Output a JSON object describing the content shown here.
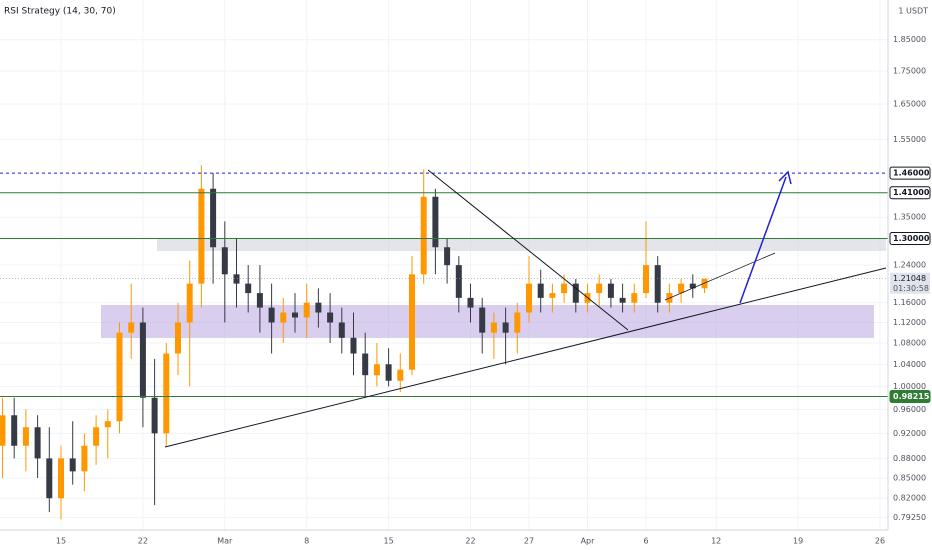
{
  "chart_data": {
    "type": "candlestick",
    "title": "RSI Strategy (14, 30, 70)",
    "price_unit": "1 USDT",
    "log_scale": true,
    "grid": true,
    "up_color": "#ff9800",
    "down_color": "#363a45",
    "categories": [
      null,
      null,
      null,
      null,
      null,
      "15",
      null,
      null,
      null,
      null,
      null,
      null,
      "22",
      null,
      null,
      null,
      null,
      null,
      null,
      "Mar",
      null,
      null,
      null,
      null,
      null,
      null,
      "8",
      null,
      null,
      null,
      null,
      null,
      null,
      "15",
      null,
      null,
      null,
      null,
      null,
      null,
      "22",
      null,
      null,
      null,
      null,
      "27",
      null,
      null,
      null,
      null,
      "Apr",
      null,
      null,
      null,
      null,
      "6",
      null,
      null,
      null,
      null,
      null,
      "12",
      null,
      null,
      null,
      null,
      null,
      null,
      "19",
      null,
      null,
      null,
      null,
      null,
      null,
      "26"
    ],
    "open": [
      0.9,
      0.95,
      0.9,
      0.93,
      0.88,
      0.82,
      0.88,
      0.86,
      0.9,
      0.93,
      0.94,
      1.1,
      1.12,
      0.98,
      0.92,
      1.06,
      1.12,
      1.2,
      1.42,
      1.28,
      1.22,
      1.2,
      1.18,
      1.15,
      1.12,
      1.14,
      1.13,
      1.16,
      1.14,
      1.12,
      1.09,
      1.06,
      1.02,
      1.04,
      1.01,
      1.03,
      1.22,
      1.4,
      1.28,
      1.24,
      1.17,
      1.15,
      1.1,
      1.12,
      1.1,
      1.14,
      1.2,
      1.17,
      1.18,
      1.2,
      1.16,
      1.18,
      1.2,
      1.17,
      1.16,
      1.18,
      1.24,
      1.16,
      1.18,
      1.2,
      1.19,
      null,
      null,
      null,
      null,
      null,
      null,
      null,
      null,
      null,
      null,
      null,
      null,
      null,
      null,
      null
    ],
    "high": [
      0.98,
      0.98,
      0.96,
      0.95,
      0.93,
      0.9,
      0.94,
      0.92,
      0.95,
      0.96,
      1.12,
      1.2,
      1.15,
      1.05,
      1.08,
      1.16,
      1.25,
      1.48,
      1.46,
      1.34,
      1.3,
      1.24,
      1.24,
      1.2,
      1.17,
      1.18,
      1.2,
      1.19,
      1.18,
      1.15,
      1.14,
      1.1,
      1.08,
      1.07,
      1.06,
      1.26,
      1.47,
      1.42,
      1.3,
      1.26,
      1.2,
      1.17,
      1.14,
      1.15,
      1.16,
      1.26,
      1.23,
      1.2,
      1.22,
      1.21,
      1.2,
      1.22,
      1.21,
      1.2,
      1.2,
      1.34,
      1.26,
      1.2,
      1.21,
      1.22,
      1.21,
      null,
      null,
      null,
      null,
      null,
      null,
      null,
      null,
      null,
      null,
      null,
      null,
      null,
      null,
      null
    ],
    "low": [
      0.85,
      0.88,
      0.86,
      0.85,
      0.8,
      0.79,
      0.84,
      0.83,
      0.87,
      0.88,
      0.92,
      1.05,
      0.93,
      0.81,
      0.9,
      1.02,
      1.0,
      1.15,
      1.2,
      1.12,
      1.15,
      1.14,
      1.1,
      1.06,
      1.08,
      1.1,
      1.09,
      1.11,
      1.08,
      1.06,
      1.02,
      0.98,
      1.0,
      1.0,
      0.99,
      1.02,
      1.2,
      1.22,
      1.2,
      1.14,
      1.12,
      1.06,
      1.05,
      1.04,
      1.06,
      1.12,
      1.14,
      1.14,
      1.16,
      1.14,
      1.14,
      1.15,
      1.15,
      1.14,
      1.14,
      1.17,
      1.14,
      1.14,
      1.16,
      1.17,
      1.18,
      null,
      null,
      null,
      null,
      null,
      null,
      null,
      null,
      null,
      null,
      null,
      null,
      null,
      null,
      null
    ],
    "close": [
      0.95,
      0.9,
      0.93,
      0.88,
      0.82,
      0.88,
      0.86,
      0.9,
      0.93,
      0.94,
      1.1,
      1.12,
      0.98,
      0.92,
      1.06,
      1.12,
      1.2,
      1.42,
      1.28,
      1.22,
      1.2,
      1.18,
      1.15,
      1.12,
      1.14,
      1.13,
      1.16,
      1.14,
      1.12,
      1.09,
      1.06,
      1.02,
      1.04,
      1.01,
      1.03,
      1.22,
      1.4,
      1.28,
      1.24,
      1.17,
      1.15,
      1.1,
      1.12,
      1.1,
      1.14,
      1.2,
      1.17,
      1.18,
      1.2,
      1.16,
      1.18,
      1.2,
      1.17,
      1.16,
      1.18,
      1.24,
      1.16,
      1.18,
      1.2,
      1.19,
      1.21048,
      null,
      null,
      null,
      null,
      null,
      null,
      null,
      null,
      null,
      null,
      null,
      null,
      null,
      null,
      null
    ],
    "ylim": [
      0.775,
      1.985
    ],
    "yticks": [
      {
        "value": 1.85,
        "label": "1.85000"
      },
      {
        "value": 1.75,
        "label": "1.75000"
      },
      {
        "value": 1.65,
        "label": "1.65000"
      },
      {
        "value": 1.55,
        "label": "1.55000"
      },
      {
        "value": 1.35,
        "label": "1.35000"
      },
      {
        "value": 1.24,
        "label": "1.24000"
      },
      {
        "value": 1.16,
        "label": "1.16000"
      },
      {
        "value": 1.12,
        "label": "1.12000"
      },
      {
        "value": 1.08,
        "label": "1.08000"
      },
      {
        "value": 1.04,
        "label": "1.04000"
      },
      {
        "value": 1.0,
        "label": "1.00000"
      },
      {
        "value": 0.96,
        "label": "0.96000"
      },
      {
        "value": 0.92,
        "label": "0.92000"
      },
      {
        "value": 0.88,
        "label": "0.88000"
      },
      {
        "value": 0.85,
        "label": "0.85000"
      },
      {
        "value": 0.82,
        "label": "0.82000"
      },
      {
        "value": 0.7925,
        "label": "0.79250"
      }
    ],
    "levels": [
      {
        "value": 1.46,
        "label": "1.46000",
        "color": "#1e22d4",
        "dashed": true,
        "filled": false
      },
      {
        "value": 1.41,
        "label": "1.41000",
        "color": "#2e7d32",
        "dashed": false,
        "filled": false
      },
      {
        "value": 1.3,
        "label": "1.30000",
        "color": "#2e7d32",
        "dashed": false,
        "filled": false
      },
      {
        "value": 0.98215,
        "label": "0.98215",
        "color": "#2e7d32",
        "dashed": false,
        "filled": true
      }
    ],
    "current_price": {
      "value": 1.21048,
      "label": "1.21048",
      "countdown": "01:30:58"
    }
  }
}
